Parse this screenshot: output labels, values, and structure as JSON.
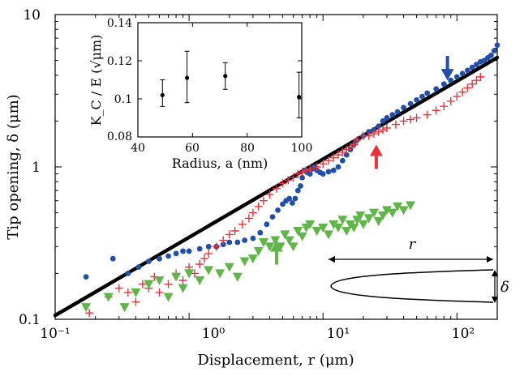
{
  "chart_data": [
    {
      "type": "scatter",
      "scale": "log-log",
      "xlabel": "Displacement, r (μm)",
      "ylabel": "Tip opening, δ (μm)",
      "xlim": [
        0.1,
        200
      ],
      "ylim": [
        0.1,
        10
      ],
      "x_ticks": [
        "10⁻¹",
        "10⁰",
        "10¹",
        "10²"
      ],
      "y_ticks": [
        "0.1",
        "1",
        "10"
      ],
      "series": [
        {
          "marker": "line",
          "color": "#000000",
          "x": [
            0.1,
            200
          ],
          "y": [
            0.106,
            5.22
          ]
        },
        {
          "marker": "circle",
          "color": "#1f4fa8",
          "x": [
            0.17,
            0.27,
            0.35,
            0.42,
            0.5,
            0.6,
            0.7,
            0.8,
            0.9,
            1.0,
            1.2,
            1.4,
            1.6,
            1.8,
            2.0,
            2.3,
            2.6,
            3.0,
            3.4,
            3.8,
            4.2,
            4.6,
            5.0,
            5.3,
            5.6,
            5.9,
            6.2,
            6.5,
            6.8,
            7.0,
            7.3,
            7.6,
            8.0,
            8.3,
            8.6,
            9.0,
            9.5,
            10,
            11,
            12,
            13,
            14,
            15,
            16,
            17,
            18,
            20,
            22,
            24,
            26,
            28,
            30,
            33,
            36,
            40,
            45,
            50,
            55,
            60,
            70,
            80,
            90,
            100,
            110,
            120,
            130,
            140,
            150,
            160,
            170,
            180,
            190,
            200
          ],
          "y": [
            0.19,
            0.25,
            0.2,
            0.22,
            0.24,
            0.25,
            0.26,
            0.27,
            0.28,
            0.28,
            0.29,
            0.3,
            0.3,
            0.31,
            0.32,
            0.32,
            0.33,
            0.34,
            0.37,
            0.42,
            0.47,
            0.52,
            0.57,
            0.6,
            0.62,
            0.58,
            0.62,
            0.7,
            0.75,
            0.85,
            0.95,
            0.92,
            0.9,
            0.97,
            1.0,
            0.95,
            0.92,
            0.9,
            0.93,
            0.95,
            1.0,
            1.1,
            1.2,
            1.3,
            1.4,
            1.5,
            1.6,
            1.7,
            1.75,
            1.85,
            2.0,
            2.1,
            2.2,
            2.3,
            2.45,
            2.6,
            2.75,
            2.9,
            3.05,
            3.25,
            3.5,
            3.7,
            3.9,
            4.1,
            4.3,
            4.5,
            4.7,
            4.9,
            5.0,
            5.2,
            5.4,
            5.8,
            6.3
          ]
        },
        {
          "marker": "plus",
          "color": "#e8333a",
          "x": [
            0.18,
            0.25,
            0.3,
            0.35,
            0.4,
            0.45,
            0.5,
            0.55,
            0.6,
            0.7,
            0.8,
            0.9,
            1.0,
            1.1,
            1.2,
            1.3,
            1.4,
            1.6,
            1.8,
            2.0,
            2.2,
            2.5,
            2.8,
            3.0,
            3.3,
            3.6,
            4.0,
            4.5,
            5.0,
            5.5,
            6.0,
            6.5,
            7.0,
            7.5,
            8.0,
            9.0,
            10,
            11,
            12,
            13,
            14,
            15,
            16,
            17,
            18,
            20,
            22,
            24,
            26,
            28,
            30,
            35,
            40,
            45,
            50,
            60,
            70,
            80,
            90,
            100,
            110,
            120,
            130,
            140,
            150
          ],
          "y": [
            0.11,
            0.14,
            0.16,
            0.15,
            0.13,
            0.17,
            0.16,
            0.19,
            0.15,
            0.17,
            0.2,
            0.18,
            0.22,
            0.2,
            0.23,
            0.25,
            0.27,
            0.3,
            0.33,
            0.36,
            0.38,
            0.42,
            0.46,
            0.5,
            0.55,
            0.6,
            0.66,
            0.72,
            0.78,
            0.82,
            0.85,
            0.9,
            0.93,
            0.95,
            0.97,
            1.0,
            1.05,
            1.1,
            1.15,
            1.2,
            1.25,
            1.3,
            1.35,
            1.4,
            1.5,
            1.6,
            1.6,
            1.65,
            1.7,
            1.75,
            1.8,
            1.9,
            2.0,
            2.05,
            2.1,
            2.2,
            2.35,
            2.5,
            2.7,
            2.9,
            3.1,
            3.3,
            3.5,
            3.7,
            3.9
          ]
        },
        {
          "marker": "triangle-down",
          "color": "#5fb548",
          "x": [
            0.17,
            0.25,
            0.33,
            0.4,
            0.5,
            0.6,
            0.7,
            0.8,
            0.9,
            1.0,
            1.2,
            1.4,
            1.7,
            2.0,
            2.3,
            2.6,
            3.0,
            3.3,
            3.6,
            4.0,
            4.4,
            4.8,
            5.2,
            5.6,
            6.0,
            6.5,
            7.0,
            7.5,
            8.0,
            9.0,
            10,
            11,
            12,
            13,
            14,
            15,
            16,
            17,
            18,
            19,
            20,
            22,
            24,
            26,
            28,
            30,
            33,
            36,
            40,
            45
          ],
          "y": [
            0.12,
            0.14,
            0.12,
            0.15,
            0.17,
            0.18,
            0.14,
            0.19,
            0.16,
            0.2,
            0.18,
            0.21,
            0.2,
            0.22,
            0.19,
            0.24,
            0.25,
            0.28,
            0.32,
            0.3,
            0.33,
            0.3,
            0.36,
            0.33,
            0.3,
            0.38,
            0.35,
            0.4,
            0.42,
            0.38,
            0.4,
            0.36,
            0.42,
            0.4,
            0.45,
            0.38,
            0.42,
            0.4,
            0.45,
            0.48,
            0.42,
            0.46,
            0.5,
            0.44,
            0.48,
            0.52,
            0.5,
            0.55,
            0.52,
            0.56
          ]
        }
      ],
      "arrows": [
        {
          "color": "#1f4fa8",
          "x": 85,
          "y_head": 3.7,
          "direction": "down"
        },
        {
          "color": "#e8333a",
          "x": 25,
          "y_head": 1.4,
          "direction": "up"
        },
        {
          "color": "#5fb548",
          "x": 4.5,
          "y_head": 0.33,
          "direction": "up"
        }
      ],
      "schematic_labels": {
        "length": "r",
        "opening": "δ"
      }
    },
    {
      "type": "scatter",
      "inset": true,
      "xlabel": "Radius, a (nm)",
      "ylabel": "K_C / E (√μm)",
      "xlim": [
        40,
        100
      ],
      "ylim": [
        0.08,
        0.14
      ],
      "x_ticks": [
        "40",
        "60",
        "80",
        "100"
      ],
      "y_ticks": [
        "0.08",
        "0.1",
        "0.12",
        "0.14"
      ],
      "points": [
        {
          "x": 49,
          "y": 0.102,
          "err_low": 0.096,
          "err_high": 0.11
        },
        {
          "x": 58,
          "y": 0.111,
          "err_low": 0.098,
          "err_high": 0.125
        },
        {
          "x": 72,
          "y": 0.112,
          "err_low": 0.105,
          "err_high": 0.119
        },
        {
          "x": 99,
          "y": 0.101,
          "err_low": 0.09,
          "err_high": 0.114
        }
      ]
    }
  ]
}
